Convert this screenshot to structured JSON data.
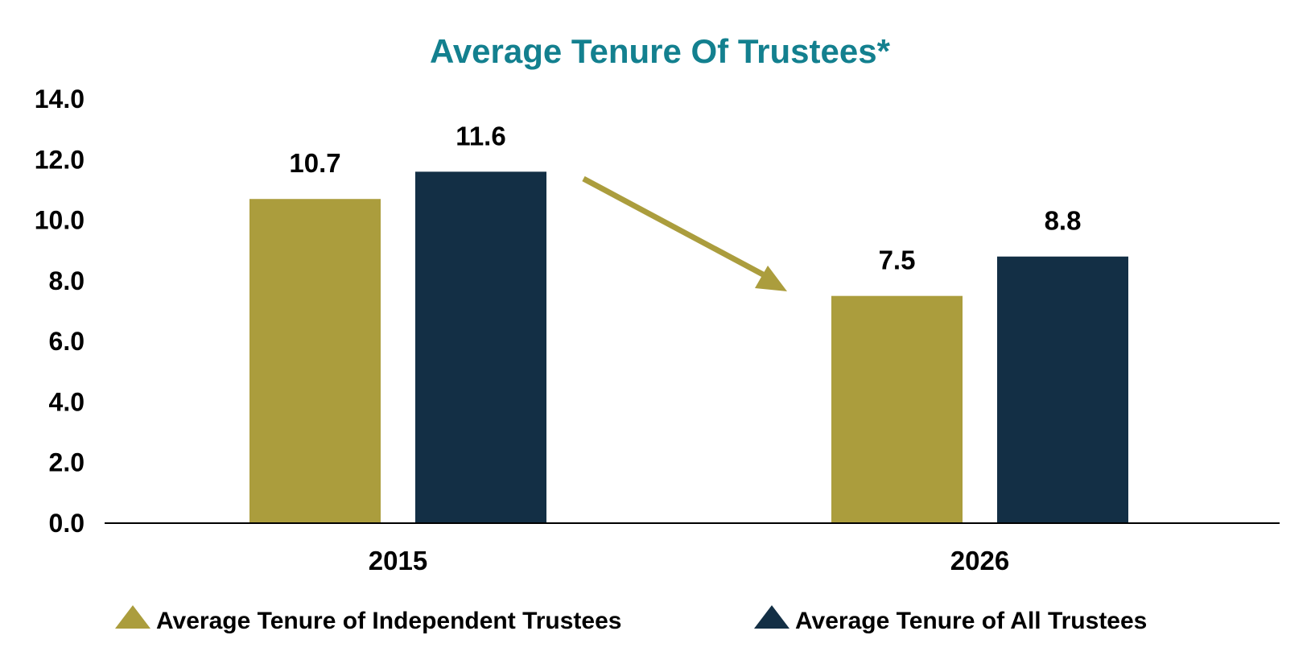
{
  "chart_data": {
    "type": "bar",
    "title": "Average Tenure Of Trustees*",
    "xlabel": "",
    "ylabel": "",
    "categories": [
      "2015",
      "2026"
    ],
    "series": [
      {
        "name": "Average Tenure of Independent Trustees",
        "values": [
          10.7,
          7.5
        ],
        "color": "#ab9d3d"
      },
      {
        "name": "Average Tenure of All Trustees",
        "values": [
          11.6,
          8.8
        ],
        "color": "#132f45"
      }
    ],
    "ylim": [
      0,
      14
    ],
    "yticks": [
      "0.0",
      "2.0",
      "4.0",
      "6.0",
      "8.0",
      "10.0",
      "12.0",
      "14.0"
    ],
    "data_labels": [
      [
        "10.7",
        "7.5"
      ],
      [
        "11.6",
        "8.8"
      ]
    ],
    "grid": false,
    "legend": "bottom",
    "annotation": {
      "type": "arrow",
      "from_category": "2015",
      "to_category": "2026",
      "direction": "down",
      "color": "#ab9d3d"
    },
    "colors": {
      "title": "#13808f",
      "axis": "#000000",
      "background": "#ffffff"
    }
  }
}
